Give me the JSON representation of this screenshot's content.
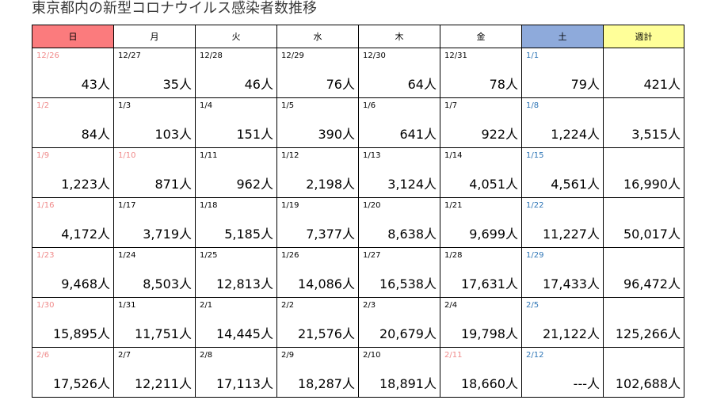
{
  "title": "東京都内の新型コロナウイルス感染者数推移",
  "headers": [
    "日",
    "月",
    "火",
    "水",
    "木",
    "金",
    "土",
    "週計"
  ],
  "rows": [
    {
      "dates": [
        "12/26",
        "12/27",
        "12/28",
        "12/29",
        "12/30",
        "12/31",
        "1/1"
      ],
      "counts": [
        "43人",
        "35人",
        "46人",
        "76人",
        "64人",
        "78人",
        "79人"
      ],
      "week_total": "421人"
    },
    {
      "dates": [
        "1/2",
        "1/3",
        "1/4",
        "1/5",
        "1/6",
        "1/7",
        "1/8"
      ],
      "counts": [
        "84人",
        "103人",
        "151人",
        "390人",
        "641人",
        "922人",
        "1,224人"
      ],
      "week_total": "3,515人"
    },
    {
      "dates": [
        "1/9",
        "1/10",
        "1/11",
        "1/12",
        "1/13",
        "1/14",
        "1/15"
      ],
      "counts": [
        "1,223人",
        "871人",
        "962人",
        "2,198人",
        "3,124人",
        "4,051人",
        "4,561人"
      ],
      "week_total": "16,990人"
    },
    {
      "dates": [
        "1/16",
        "1/17",
        "1/18",
        "1/19",
        "1/20",
        "1/21",
        "1/22"
      ],
      "counts": [
        "4,172人",
        "3,719人",
        "5,185人",
        "7,377人",
        "8,638人",
        "9,699人",
        "11,227人"
      ],
      "week_total": "50,017人"
    },
    {
      "dates": [
        "1/23",
        "1/24",
        "1/25",
        "1/26",
        "1/27",
        "1/28",
        "1/29"
      ],
      "counts": [
        "9,468人",
        "8,503人",
        "12,813人",
        "14,086人",
        "16,538人",
        "17,631人",
        "17,433人"
      ],
      "week_total": "96,472人"
    },
    {
      "dates": [
        "1/30",
        "1/31",
        "2/1",
        "2/2",
        "2/3",
        "2/4",
        "2/5"
      ],
      "counts": [
        "15,895人",
        "11,751人",
        "14,445人",
        "21,576人",
        "20,679人",
        "19,798人",
        "21,122人"
      ],
      "week_total": "125,266人"
    },
    {
      "dates": [
        "2/6",
        "2/7",
        "2/8",
        "2/9",
        "2/10",
        "2/11",
        "2/12"
      ],
      "counts": [
        "17,526人",
        "12,211人",
        "17,113人",
        "18,287人",
        "18,891人",
        "18,660人",
        "---人"
      ],
      "week_total": "102,688人"
    }
  ],
  "red_dates": [
    "12/26",
    "1/2",
    "1/9",
    "1/10",
    "1/16",
    "1/23",
    "1/30",
    "2/6",
    "2/11"
  ],
  "blue_dates": [
    "1/1",
    "1/8",
    "1/15",
    "1/22",
    "1/29",
    "2/5",
    "2/12"
  ],
  "colors": {
    "sunday_header": "#fb7b7d",
    "saturday_header": "#8eaadb",
    "week_total_header": "#ffff99",
    "holiday_date": "#f08a8a",
    "saturday_date": "#2e75b6"
  }
}
